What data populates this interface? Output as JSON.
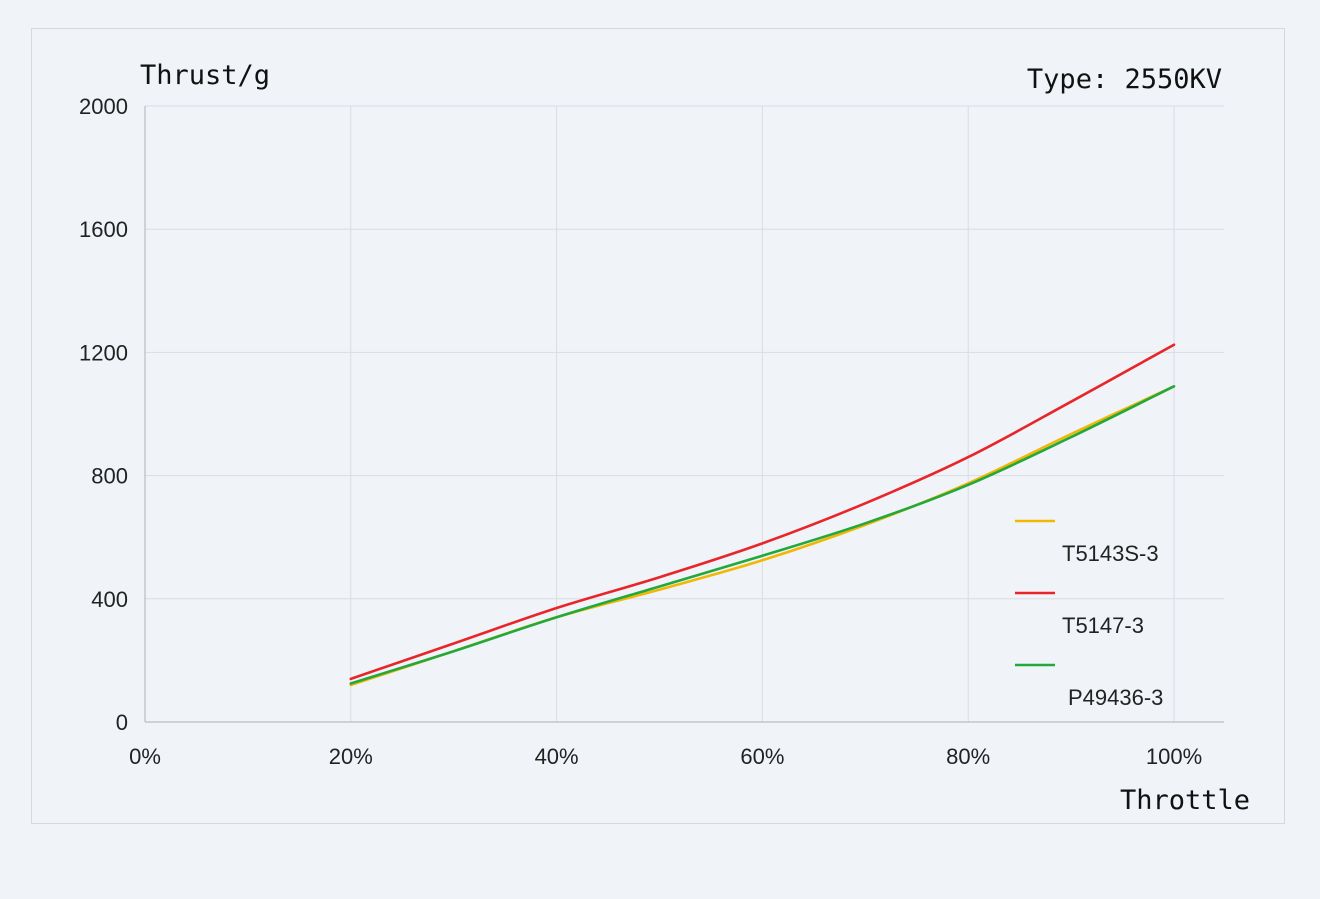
{
  "chart_data": {
    "type": "line",
    "title": "Type: 2550KV",
    "ylabel": "Thrust/g",
    "xlabel": "Throttle",
    "x": [
      20,
      30,
      40,
      50,
      60,
      70,
      80,
      90,
      100
    ],
    "xlim": [
      0,
      100
    ],
    "ylim": [
      0,
      2000
    ],
    "x_ticks": [
      "0%",
      "20%",
      "40%",
      "60%",
      "80%",
      "100%"
    ],
    "x_tick_values": [
      0,
      20,
      40,
      60,
      80,
      100
    ],
    "y_ticks": [
      "0",
      "400",
      "800",
      "1200",
      "1600",
      "2000"
    ],
    "y_tick_values": [
      0,
      400,
      800,
      1200,
      1600,
      2000
    ],
    "grid": true,
    "legend_position": "right",
    "series": [
      {
        "name": "T5143S-3",
        "color": "#f2b705",
        "values": [
          120,
          230,
          340,
          430,
          525,
          640,
          775,
          935,
          1090
        ]
      },
      {
        "name": "T5147-3",
        "color": "#e8262a",
        "values": [
          140,
          255,
          370,
          470,
          580,
          710,
          860,
          1040,
          1225
        ]
      },
      {
        "name": "P49436-3",
        "color": "#23a83c",
        "values": [
          125,
          230,
          340,
          440,
          540,
          645,
          770,
          925,
          1090
        ]
      }
    ]
  }
}
